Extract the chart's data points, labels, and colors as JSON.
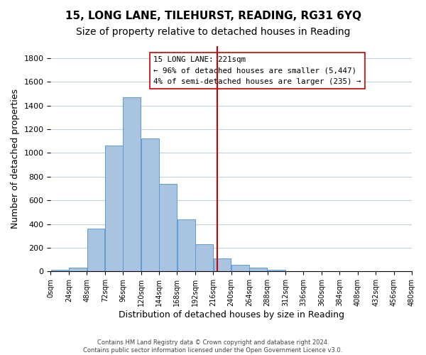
{
  "title": "15, LONG LANE, TILEHURST, READING, RG31 6YQ",
  "subtitle": "Size of property relative to detached houses in Reading",
  "xlabel": "Distribution of detached houses by size in Reading",
  "ylabel": "Number of detached properties",
  "bar_color": "#a8c4e0",
  "bar_edge_color": "#5b9bd5",
  "background_color": "#ffffff",
  "grid_color": "#c0d0e0",
  "vline_x": 221,
  "vline_color": "#cc0000",
  "bin_edges": [
    0,
    24,
    48,
    72,
    96,
    120,
    144,
    168,
    192,
    216,
    240,
    264,
    288,
    312,
    336,
    360,
    384,
    408,
    432,
    456,
    480
  ],
  "bar_heights": [
    15,
    35,
    360,
    1060,
    1470,
    1120,
    740,
    440,
    230,
    110,
    55,
    30,
    15,
    5,
    0,
    0,
    0,
    0,
    0,
    0
  ],
  "ylim": [
    0,
    1900
  ],
  "xlim": [
    0,
    480
  ],
  "yticks": [
    0,
    200,
    400,
    600,
    800,
    1000,
    1200,
    1400,
    1600,
    1800
  ],
  "xtick_labels": [
    "0sqm",
    "24sqm",
    "48sqm",
    "72sqm",
    "96sqm",
    "120sqm",
    "144sqm",
    "168sqm",
    "192sqm",
    "216sqm",
    "240sqm",
    "264sqm",
    "288sqm",
    "312sqm",
    "336sqm",
    "360sqm",
    "384sqm",
    "408sqm",
    "432sqm",
    "456sqm",
    "480sqm"
  ],
  "annotation_title": "15 LONG LANE: 221sqm",
  "annotation_line1": "← 96% of detached houses are smaller (5,447)",
  "annotation_line2": "4% of semi-detached houses are larger (235) →",
  "footer_line1": "Contains HM Land Registry data © Crown copyright and database right 2024.",
  "footer_line2": "Contains public sector information licensed under the Open Government Licence v3.0.",
  "title_fontsize": 11,
  "subtitle_fontsize": 10,
  "xlabel_fontsize": 9,
  "ylabel_fontsize": 9
}
